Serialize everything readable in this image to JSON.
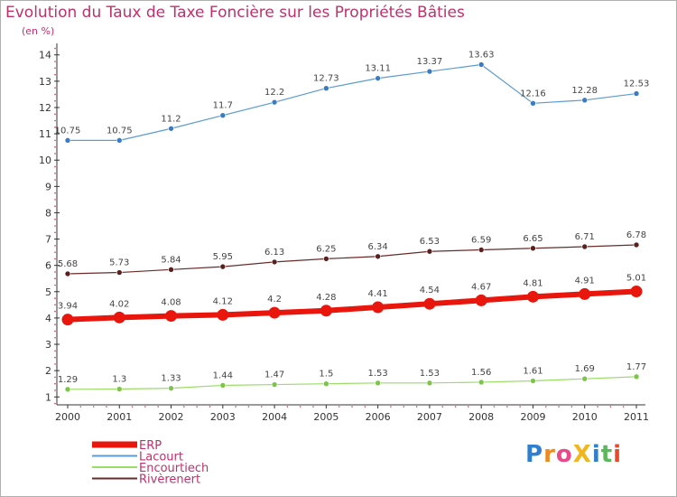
{
  "title": "Evolution du Taux de Taxe Foncière sur les Propriétés Bâties",
  "unit": "(en %)",
  "logo": {
    "text": "ProXiti",
    "letters": [
      "P",
      "r",
      "o",
      "X",
      "i",
      "t",
      "i"
    ],
    "colors": [
      "#2f7fd0",
      "#f08a1e",
      "#e84a8a",
      "#f2b51c",
      "#2f7fd0",
      "#5cb85c",
      "#e84a2a"
    ]
  },
  "chart_data": {
    "type": "line",
    "title": "Evolution du Taux de Taxe Foncière sur les Propriétés Bâties",
    "ylabel": "(en %)",
    "xlabel": "",
    "x": [
      "2000",
      "2001",
      "2002",
      "2003",
      "2004",
      "2005",
      "2006",
      "2007",
      "2008",
      "2009",
      "2010",
      "2011"
    ],
    "ylim": [
      0.7,
      14.3
    ],
    "yticks": [
      1,
      2,
      3,
      4,
      5,
      6,
      7,
      8,
      9,
      10,
      11,
      12,
      13,
      14
    ],
    "grid": false,
    "legend_position": "bottom-left",
    "series": [
      {
        "name": "Lacourt",
        "color": "#5b9bd5",
        "marker_fill": "#3a7cc3",
        "width": 1.2,
        "values": [
          10.75,
          10.75,
          11.2,
          11.7,
          12.2,
          12.73,
          13.11,
          13.37,
          13.63,
          12.16,
          12.28,
          12.53
        ],
        "labels": [
          "10.75",
          "10.75",
          "11.2",
          "11.7",
          "12.2",
          "12.73",
          "13.11",
          "13.37",
          "13.63",
          "12.16",
          "12.28",
          "12.53"
        ]
      },
      {
        "name": "Rivèrenert",
        "color": "#6b2a2a",
        "marker_fill": "#5a1f1f",
        "width": 1.2,
        "values": [
          5.68,
          5.73,
          5.84,
          5.95,
          6.13,
          6.25,
          6.34,
          6.53,
          6.59,
          6.65,
          6.71,
          6.78
        ],
        "labels": [
          "5.68",
          "5.73",
          "5.84",
          "5.95",
          "6.13",
          "6.25",
          "6.34",
          "6.53",
          "6.59",
          "6.65",
          "6.71",
          "6.78"
        ]
      },
      {
        "name": "ERP",
        "color": "#e8160c",
        "marker_fill": "#e8160c",
        "width": 6,
        "values": [
          3.94,
          4.02,
          4.08,
          4.12,
          4.2,
          4.28,
          4.41,
          4.54,
          4.67,
          4.81,
          4.91,
          5.01
        ],
        "labels": [
          "3.94",
          "4.02",
          "4.08",
          "4.12",
          "4.2",
          "4.28",
          "4.41",
          "4.54",
          "4.67",
          "4.81",
          "4.91",
          "5.01"
        ]
      },
      {
        "name": "Encourtiech",
        "color": "#99dd66",
        "marker_fill": "#7cc548",
        "width": 1.2,
        "values": [
          1.29,
          1.3,
          1.33,
          1.44,
          1.47,
          1.5,
          1.53,
          1.53,
          1.56,
          1.61,
          1.69,
          1.77
        ],
        "labels": [
          "1.29",
          "1.3",
          "1.33",
          "1.44",
          "1.47",
          "1.5",
          "1.53",
          "1.53",
          "1.56",
          "1.61",
          "1.69",
          "1.77"
        ]
      }
    ],
    "legend": [
      "ERP",
      "Lacourt",
      "Encourtiech",
      "Rivèrenert"
    ]
  }
}
